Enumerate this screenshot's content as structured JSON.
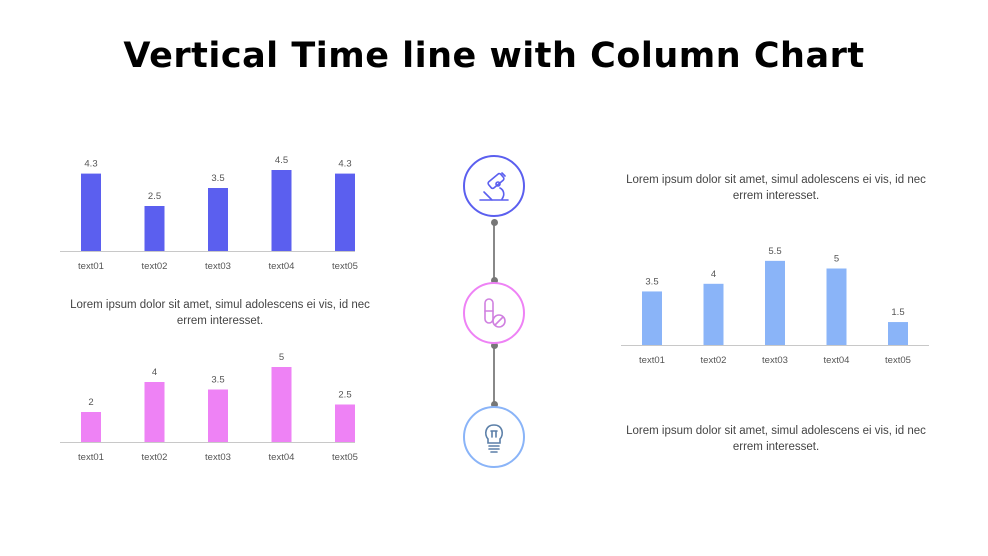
{
  "title": "Vertical Time line with Column Chart",
  "colors": {
    "chart1": "#5b5fef",
    "chart2": "#ee82f5",
    "chart3": "#8ab4f8",
    "axis": "#c8c8c8",
    "connector": "#888888"
  },
  "timeline": [
    {
      "icon": "microscope-icon",
      "color": "#5b5fef"
    },
    {
      "icon": "pills-icon",
      "color": "#ee82f5"
    },
    {
      "icon": "lightbulb-icon",
      "color": "#8ab4f8"
    }
  ],
  "descriptions": {
    "left": "Lorem ipsum dolor sit amet, simul adolescens ei vis, id nec errem  interesset.",
    "right_top": "Lorem ipsum dolor sit amet, simul adolescens ei vis, id nec errem  interesset.",
    "right_bottom": "Lorem ipsum dolor sit amet, simul adolescens ei vis, id nec errem  interesset."
  },
  "chart_data": [
    {
      "type": "bar",
      "categories": [
        "text01",
        "text02",
        "text03",
        "text04",
        "text05"
      ],
      "values": [
        4.3,
        2.5,
        3.5,
        4.5,
        4.3
      ],
      "color": "#5b5fef",
      "data_labels": true
    },
    {
      "type": "bar",
      "categories": [
        "text01",
        "text02",
        "text03",
        "text04",
        "text05"
      ],
      "values": [
        2,
        4,
        3.5,
        5,
        2.5
      ],
      "color": "#ee82f5",
      "data_labels": true
    },
    {
      "type": "bar",
      "categories": [
        "text01",
        "text02",
        "text03",
        "text04",
        "text05"
      ],
      "values": [
        3.5,
        4,
        5.5,
        5,
        1.5
      ],
      "color": "#8ab4f8",
      "data_labels": true
    }
  ]
}
